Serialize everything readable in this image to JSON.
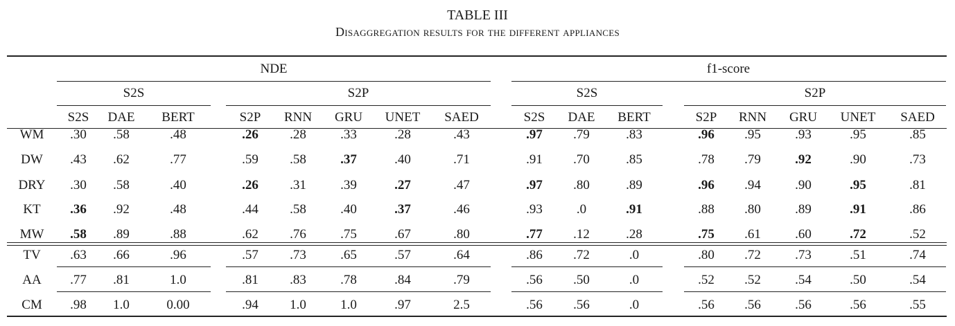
{
  "caption": {
    "title": "TABLE III",
    "subtitle": "Disaggregation results for the different appliances"
  },
  "groups": [
    {
      "label": "NDE"
    },
    {
      "label": "f1-score"
    }
  ],
  "subgroups": [
    {
      "label": "S2S"
    },
    {
      "label": "S2P"
    },
    {
      "label": "S2S"
    },
    {
      "label": "S2P"
    }
  ],
  "columns": [
    "S2S",
    "DAE",
    "BERT",
    "S2P",
    "RNN",
    "GRU",
    "UNET",
    "SAED",
    "S2S",
    "DAE",
    "BERT",
    "S2P",
    "RNN",
    "GRU",
    "UNET",
    "SAED"
  ],
  "rows": [
    {
      "label": "WM",
      "values": [
        ".30",
        ".58",
        ".48",
        ".26",
        ".28",
        ".33",
        ".28",
        ".43",
        ".97",
        ".79",
        ".83",
        ".96",
        ".95",
        ".93",
        ".95",
        ".85"
      ],
      "bold": [
        3,
        8,
        11
      ]
    },
    {
      "label": "DW",
      "values": [
        ".43",
        ".62",
        ".77",
        ".59",
        ".58",
        ".37",
        ".40",
        ".71",
        ".91",
        ".70",
        ".85",
        ".78",
        ".79",
        ".92",
        ".90",
        ".73"
      ],
      "bold": [
        5,
        13
      ]
    },
    {
      "label": "DRY",
      "values": [
        ".30",
        ".58",
        ".40",
        ".26",
        ".31",
        ".39",
        ".27",
        ".47",
        ".97",
        ".80",
        ".89",
        ".96",
        ".94",
        ".90",
        ".95",
        ".81"
      ],
      "bold": [
        3,
        6,
        8,
        11,
        14
      ]
    },
    {
      "label": "KT",
      "values": [
        ".36",
        ".92",
        ".48",
        ".44",
        ".58",
        ".40",
        ".37",
        ".46",
        ".93",
        ".0",
        ".91",
        ".88",
        ".80",
        ".89",
        ".91",
        ".86"
      ],
      "bold": [
        0,
        6,
        10,
        14
      ]
    },
    {
      "label": "MW",
      "values": [
        ".58",
        ".89",
        ".88",
        ".62",
        ".76",
        ".75",
        ".67",
        ".80",
        ".77",
        ".12",
        ".28",
        ".75",
        ".61",
        ".60",
        ".72",
        ".52"
      ],
      "bold": [
        0,
        8,
        11,
        14
      ]
    },
    {
      "label": "TV",
      "values": [
        ".63",
        ".66",
        ".96",
        ".57",
        ".73",
        ".65",
        ".57",
        ".64",
        ".86",
        ".72",
        ".0",
        ".80",
        ".72",
        ".73",
        ".51",
        ".74"
      ],
      "bold": []
    },
    {
      "label": "AA",
      "values": [
        ".77",
        ".81",
        "1.0",
        ".81",
        ".83",
        ".78",
        ".84",
        ".79",
        ".56",
        ".50",
        ".0",
        ".52",
        ".52",
        ".54",
        ".50",
        ".54"
      ],
      "bold": []
    },
    {
      "label": "CM",
      "values": [
        ".98",
        "1.0",
        "0.00",
        ".94",
        "1.0",
        "1.0",
        ".97",
        "2.5",
        ".56",
        ".56",
        ".0",
        ".56",
        ".56",
        ".56",
        ".56",
        ".55"
      ],
      "bold": []
    }
  ]
}
